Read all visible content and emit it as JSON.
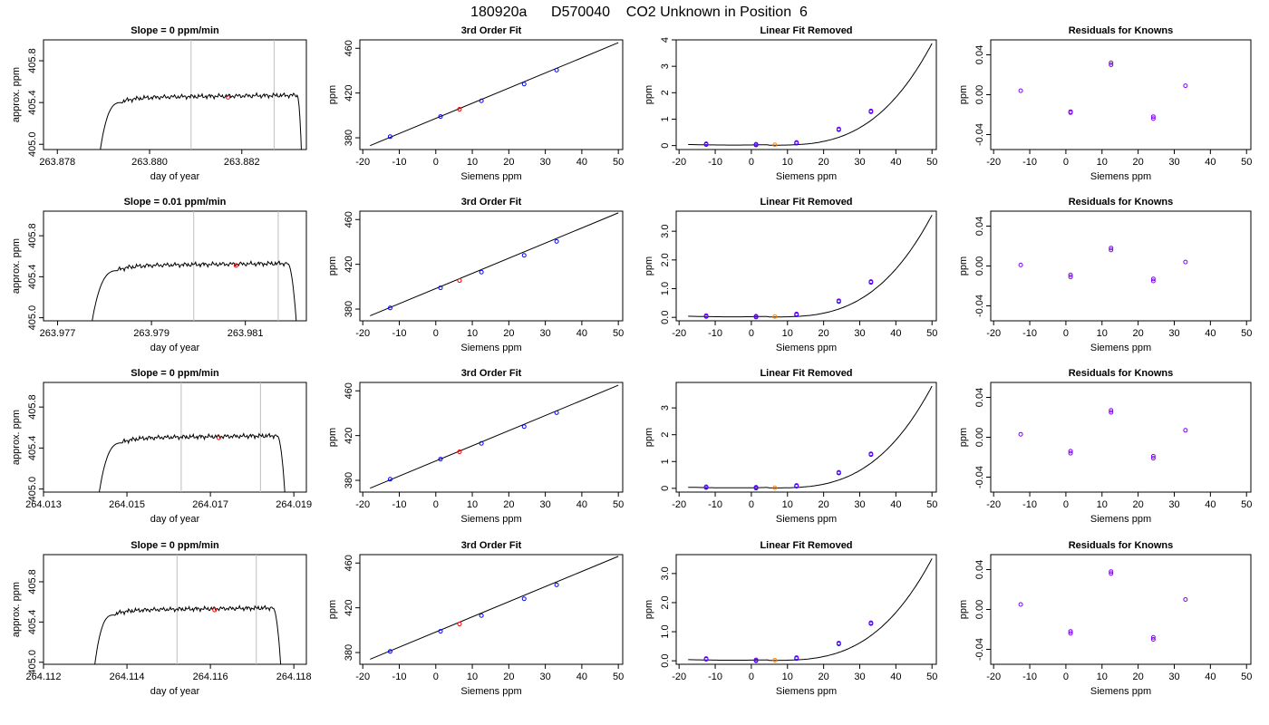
{
  "page": {
    "title": "180920a      D570040    CO2 Unknown in Position  6"
  },
  "colors": {
    "known": "#0000ff",
    "unknown": "#ff0000",
    "unknown_fit": "#ff8000",
    "residual": "#8000ff",
    "window": "#bebebe",
    "line": "#000000"
  },
  "chart_data": [
    {
      "type": "line",
      "row": 0,
      "title": "Slope =  0  ppm/min",
      "xlabel": "day of year",
      "ylabel": "approx. ppm",
      "xticks": [
        "263.878",
        "263.880",
        "263.882"
      ],
      "xtick_values": [
        263.878,
        263.88,
        263.882
      ],
      "xlim": [
        263.8777,
        263.8834
      ],
      "yticks": [
        "405.0",
        "405.4",
        "405.8"
      ],
      "ytick_values": [
        405.0,
        405.4,
        405.8
      ],
      "ylim": [
        404.95,
        406.0
      ],
      "window": [
        263.8809,
        263.8827
      ],
      "trace_start": 263.8789,
      "trace_rise_end": 263.8794,
      "trace_fall_start": 263.8832,
      "trace_end": 263.8833,
      "plateau": 405.45,
      "unknown_point": [
        263.8817,
        405.45
      ]
    },
    {
      "type": "line",
      "row": 1,
      "title": "Slope =  0.01  ppm/min",
      "xlabel": "day of year",
      "ylabel": "approx. ppm",
      "xticks": [
        "263.977",
        "263.979",
        "263.981"
      ],
      "xtick_values": [
        263.977,
        263.979,
        263.981
      ],
      "xlim": [
        263.9767,
        263.9823
      ],
      "yticks": [
        "405.0",
        "405.4",
        "405.8"
      ],
      "ytick_values": [
        405.0,
        405.4,
        405.8
      ],
      "ylim": [
        404.97,
        406.04
      ],
      "window": [
        263.9799,
        263.9817
      ],
      "trace_start": 263.9777,
      "trace_rise_end": 263.9783,
      "trace_fall_start": 263.9819,
      "trace_end": 263.9821,
      "plateau": 405.51,
      "unknown_point": [
        263.9808,
        405.51
      ]
    },
    {
      "type": "line",
      "row": 2,
      "title": "Slope =  0  ppm/min",
      "xlabel": "day of year",
      "ylabel": "approx. ppm",
      "xticks": [
        "264.013",
        "264.015",
        "264.017",
        "264.019"
      ],
      "xtick_values": [
        264.013,
        264.015,
        264.017,
        264.019
      ],
      "xlim": [
        264.013,
        264.0193
      ],
      "yticks": [
        "405.0",
        "405.4",
        "405.8"
      ],
      "ytick_values": [
        405.0,
        405.4,
        405.8
      ],
      "ylim": [
        404.97,
        406.04
      ],
      "window": [
        264.0163,
        264.0182
      ],
      "trace_start": 264.0143,
      "trace_rise_end": 264.0149,
      "trace_fall_start": 264.0186,
      "trace_end": 264.0188,
      "plateau": 405.5,
      "unknown_point": [
        264.0172,
        405.5
      ]
    },
    {
      "type": "line",
      "row": 3,
      "title": "Slope =  0  ppm/min",
      "xlabel": "day of year",
      "ylabel": "approx. ppm",
      "xticks": [
        "264.112",
        "264.114",
        "264.116",
        "264.118"
      ],
      "xtick_values": [
        264.112,
        264.114,
        264.116,
        264.118
      ],
      "xlim": [
        264.112,
        264.1183
      ],
      "yticks": [
        "405.0",
        "405.4",
        "405.8"
      ],
      "ytick_values": [
        405.0,
        405.4,
        405.8
      ],
      "ylim": [
        404.98,
        406.07
      ],
      "window": [
        264.1152,
        264.1171
      ],
      "trace_start": 264.1132,
      "trace_rise_end": 264.1137,
      "trace_fall_start": 264.1175,
      "trace_end": 264.1177,
      "plateau": 405.52,
      "unknown_point": [
        264.1161,
        405.52
      ]
    },
    {
      "type": "scatter",
      "row": 0,
      "title": "3rd Order Fit",
      "xlabel": "Siemens ppm",
      "ylabel": "ppm",
      "xticks": [
        "-20",
        "-10",
        "0",
        "10",
        "20",
        "30",
        "40",
        "50"
      ],
      "xtick_values": [
        -20,
        -10,
        0,
        10,
        20,
        30,
        40,
        50
      ],
      "xlim": [
        -20.8,
        51.2
      ],
      "yticks": [
        "380",
        "420",
        "460"
      ],
      "ytick_values": [
        380,
        420,
        460
      ],
      "ylim": [
        369.5,
        467.5
      ],
      "line": [
        [
          -18,
          373
        ],
        [
          50,
          465
        ]
      ],
      "knowns": [
        [
          -12.5,
          381
        ],
        [
          1.3,
          399
        ],
        [
          12.5,
          413
        ],
        [
          24.2,
          428
        ],
        [
          33.1,
          440.5
        ]
      ],
      "unknown": [
        [
          6.5,
          405.5
        ]
      ]
    },
    {
      "type": "scatter",
      "row": 1,
      "title": "3rd Order Fit",
      "xlabel": "Siemens ppm",
      "ylabel": "ppm",
      "xticks": [
        "-20",
        "-10",
        "0",
        "10",
        "20",
        "30",
        "40",
        "50"
      ],
      "xtick_values": [
        -20,
        -10,
        0,
        10,
        20,
        30,
        40,
        50
      ],
      "xlim": [
        -20.8,
        51.2
      ],
      "yticks": [
        "380",
        "420",
        "460"
      ],
      "ytick_values": [
        380,
        420,
        460
      ],
      "ylim": [
        369.5,
        467.5
      ],
      "line": [
        [
          -18,
          374
        ],
        [
          50,
          466
        ]
      ],
      "knowns": [
        [
          -12.5,
          381
        ],
        [
          1.3,
          399
        ],
        [
          12.5,
          413
        ],
        [
          24.2,
          428
        ],
        [
          33.1,
          440.5
        ]
      ],
      "unknown": [
        [
          6.5,
          405.5
        ]
      ]
    },
    {
      "type": "scatter",
      "row": 2,
      "title": "3rd Order Fit",
      "xlabel": "Siemens ppm",
      "ylabel": "ppm",
      "xticks": [
        "-20",
        "-10",
        "0",
        "10",
        "20",
        "30",
        "40",
        "50"
      ],
      "xtick_values": [
        -20,
        -10,
        0,
        10,
        20,
        30,
        40,
        50
      ],
      "xlim": [
        -20.8,
        51.2
      ],
      "yticks": [
        "380",
        "420",
        "460"
      ],
      "ytick_values": [
        380,
        420,
        460
      ],
      "ylim": [
        369.5,
        467.5
      ],
      "line": [
        [
          -18,
          373
        ],
        [
          50,
          465
        ]
      ],
      "knowns": [
        [
          -12.5,
          381
        ],
        [
          1.3,
          399
        ],
        [
          12.5,
          413
        ],
        [
          24.2,
          428
        ],
        [
          33.1,
          440.5
        ]
      ],
      "unknown": [
        [
          6.5,
          405.5
        ]
      ]
    },
    {
      "type": "scatter",
      "row": 3,
      "title": "3rd Order Fit",
      "xlabel": "Siemens ppm",
      "ylabel": "ppm",
      "xticks": [
        "-20",
        "-10",
        "0",
        "10",
        "20",
        "30",
        "40",
        "50"
      ],
      "xtick_values": [
        -20,
        -10,
        0,
        10,
        20,
        30,
        40,
        50
      ],
      "xlim": [
        -20.8,
        51.2
      ],
      "yticks": [
        "380",
        "420",
        "460"
      ],
      "ytick_values": [
        380,
        420,
        460
      ],
      "ylim": [
        369.5,
        467.5
      ],
      "line": [
        [
          -18,
          374
        ],
        [
          50,
          466
        ]
      ],
      "knowns": [
        [
          -12.5,
          381
        ],
        [
          1.3,
          399
        ],
        [
          12.5,
          413
        ],
        [
          24.2,
          428
        ],
        [
          33.1,
          440.5
        ]
      ],
      "unknown": [
        [
          6.5,
          405.5
        ]
      ]
    },
    {
      "type": "line",
      "row": 0,
      "title": "Linear Fit Removed",
      "xlabel": "Siemens ppm",
      "ylabel": "ppm",
      "xticks": [
        "-20",
        "-10",
        "0",
        "10",
        "20",
        "30",
        "40",
        "50"
      ],
      "xtick_values": [
        -20,
        -10,
        0,
        10,
        20,
        30,
        40,
        50
      ],
      "xlim": [
        -20.8,
        51.2
      ],
      "yticks": [
        "0",
        "1",
        "2",
        "3",
        "4"
      ],
      "ytick_values": [
        0,
        1,
        2,
        3,
        4
      ],
      "ylim": [
        -0.15,
        4.0
      ],
      "curve_max": 3.85,
      "knowns": [
        [
          -12.5,
          0.04
        ],
        [
          1.3,
          0.02
        ],
        [
          12.5,
          0.09
        ],
        [
          24.2,
          0.6
        ],
        [
          33.1,
          1.28
        ]
      ],
      "unknown": [
        [
          6.5,
          0.03
        ]
      ]
    },
    {
      "type": "line",
      "row": 1,
      "title": "Linear Fit Removed",
      "xlabel": "Siemens ppm",
      "ylabel": "ppm",
      "xticks": [
        "-20",
        "-10",
        "0",
        "10",
        "20",
        "30",
        "40",
        "50"
      ],
      "xtick_values": [
        -20,
        -10,
        0,
        10,
        20,
        30,
        40,
        50
      ],
      "xlim": [
        -20.8,
        51.2
      ],
      "yticks": [
        "0.0",
        "1.0",
        "2.0",
        "3.0"
      ],
      "ytick_values": [
        0,
        1,
        2,
        3
      ],
      "ylim": [
        -0.12,
        3.7
      ],
      "curve_max": 3.55,
      "knowns": [
        [
          -12.5,
          0.03
        ],
        [
          1.3,
          0.01
        ],
        [
          12.5,
          0.09
        ],
        [
          24.2,
          0.55
        ],
        [
          33.1,
          1.22
        ]
      ],
      "unknown": [
        [
          6.5,
          0.03
        ]
      ]
    },
    {
      "type": "line",
      "row": 2,
      "title": "Linear Fit Removed",
      "xlabel": "Siemens ppm",
      "ylabel": "ppm",
      "xticks": [
        "-20",
        "-10",
        "0",
        "10",
        "20",
        "30",
        "40",
        "50"
      ],
      "xtick_values": [
        -20,
        -10,
        0,
        10,
        20,
        30,
        40,
        50
      ],
      "xlim": [
        -20.8,
        51.2
      ],
      "yticks": [
        "0",
        "1",
        "2",
        "3"
      ],
      "ytick_values": [
        0,
        1,
        2,
        3
      ],
      "ylim": [
        -0.14,
        3.95
      ],
      "curve_max": 3.8,
      "knowns": [
        [
          -12.5,
          0.03
        ],
        [
          1.3,
          0.01
        ],
        [
          12.5,
          0.08
        ],
        [
          24.2,
          0.57
        ],
        [
          33.1,
          1.26
        ]
      ],
      "unknown": [
        [
          6.5,
          0.02
        ]
      ]
    },
    {
      "type": "line",
      "row": 3,
      "title": "Linear Fit Removed",
      "xlabel": "Siemens ppm",
      "ylabel": "ppm",
      "xticks": [
        "-20",
        "-10",
        "0",
        "10",
        "20",
        "30",
        "40",
        "50"
      ],
      "xtick_values": [
        -20,
        -10,
        0,
        10,
        20,
        30,
        40,
        50
      ],
      "xlim": [
        -20.8,
        51.2
      ],
      "yticks": [
        "0.0",
        "1.0",
        "2.0",
        "3.0"
      ],
      "ytick_values": [
        0,
        1,
        2,
        3
      ],
      "ylim": [
        -0.12,
        3.65
      ],
      "curve_max": 3.5,
      "knowns": [
        [
          -12.5,
          0.05
        ],
        [
          1.3,
          0.0
        ],
        [
          12.5,
          0.08
        ],
        [
          24.2,
          0.58
        ],
        [
          33.1,
          1.28
        ]
      ],
      "unknown": [
        [
          6.5,
          0.02
        ]
      ]
    },
    {
      "type": "scatter",
      "row": 0,
      "title": "Residuals for Knowns",
      "xlabel": "Siemens ppm",
      "ylabel": "ppm",
      "xticks": [
        "-20",
        "-10",
        "0",
        "10",
        "20",
        "30",
        "40",
        "50"
      ],
      "xtick_values": [
        -20,
        -10,
        0,
        10,
        20,
        30,
        40,
        50
      ],
      "xlim": [
        -20.8,
        51.2
      ],
      "yticks": [
        "-0.04",
        "0.00",
        "0.04"
      ],
      "ytick_values": [
        -0.04,
        0,
        0.04
      ],
      "ylim": [
        -0.055,
        0.055
      ],
      "residuals": [
        [
          -12.5,
          0.004
        ],
        [
          1.3,
          -0.017
        ],
        [
          1.3,
          -0.018
        ],
        [
          12.5,
          0.032
        ],
        [
          12.5,
          0.03
        ],
        [
          24.2,
          -0.022
        ],
        [
          24.2,
          -0.024
        ],
        [
          33.1,
          0.009
        ]
      ]
    },
    {
      "type": "scatter",
      "row": 1,
      "title": "Residuals for Knowns",
      "xlabel": "Siemens ppm",
      "ylabel": "ppm",
      "xticks": [
        "-20",
        "-10",
        "0",
        "10",
        "20",
        "30",
        "40",
        "50"
      ],
      "xtick_values": [
        -20,
        -10,
        0,
        10,
        20,
        30,
        40,
        50
      ],
      "xlim": [
        -20.8,
        51.2
      ],
      "yticks": [
        "-0.04",
        "0.00",
        "0.04"
      ],
      "ytick_values": [
        -0.04,
        0,
        0.04
      ],
      "ylim": [
        -0.055,
        0.055
      ],
      "residuals": [
        [
          -12.5,
          0.001
        ],
        [
          1.3,
          -0.009
        ],
        [
          1.3,
          -0.011
        ],
        [
          12.5,
          0.018
        ],
        [
          12.5,
          0.016
        ],
        [
          24.2,
          -0.013
        ],
        [
          24.2,
          -0.015
        ],
        [
          33.1,
          0.004
        ]
      ]
    },
    {
      "type": "scatter",
      "row": 2,
      "title": "Residuals for Knowns",
      "xlabel": "Siemens ppm",
      "ylabel": "ppm",
      "xticks": [
        "-20",
        "-10",
        "0",
        "10",
        "20",
        "30",
        "40",
        "50"
      ],
      "xtick_values": [
        -20,
        -10,
        0,
        10,
        20,
        30,
        40,
        50
      ],
      "xlim": [
        -20.8,
        51.2
      ],
      "yticks": [
        "-0.04",
        "0.00",
        "0.04"
      ],
      "ytick_values": [
        -0.04,
        0,
        0.04
      ],
      "ylim": [
        -0.055,
        0.055
      ],
      "residuals": [
        [
          -12.5,
          0.003
        ],
        [
          1.3,
          -0.014
        ],
        [
          1.3,
          -0.016
        ],
        [
          12.5,
          0.027
        ],
        [
          12.5,
          0.025
        ],
        [
          24.2,
          -0.019
        ],
        [
          24.2,
          -0.021
        ],
        [
          33.1,
          0.007
        ]
      ]
    },
    {
      "type": "scatter",
      "row": 3,
      "title": "Residuals for Knowns",
      "xlabel": "Siemens ppm",
      "ylabel": "ppm",
      "xticks": [
        "-20",
        "-10",
        "0",
        "10",
        "20",
        "30",
        "40",
        "50"
      ],
      "xtick_values": [
        -20,
        -10,
        0,
        10,
        20,
        30,
        40,
        50
      ],
      "xlim": [
        -20.8,
        51.2
      ],
      "yticks": [
        "-0.04",
        "0.00",
        "0.04"
      ],
      "ytick_values": [
        -0.04,
        0,
        0.04
      ],
      "ylim": [
        -0.055,
        0.055
      ],
      "residuals": [
        [
          -12.5,
          0.005
        ],
        [
          1.3,
          -0.022
        ],
        [
          1.3,
          -0.024
        ],
        [
          12.5,
          0.038
        ],
        [
          12.5,
          0.036
        ],
        [
          24.2,
          -0.028
        ],
        [
          24.2,
          -0.03
        ],
        [
          33.1,
          0.01
        ]
      ]
    }
  ]
}
